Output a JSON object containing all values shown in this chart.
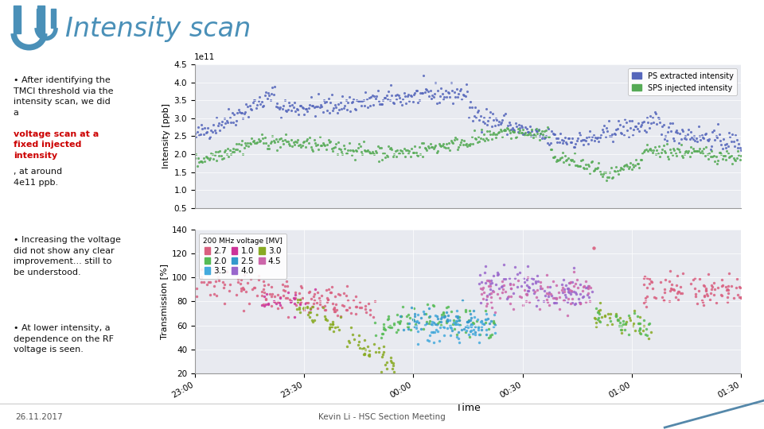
{
  "title": "Intensity scan",
  "slide_bg": "#ffffff",
  "plot_bg": "#e8eaf0",
  "header_color": "#4a90b8",
  "bullet_points_y": [
    0.93,
    0.52,
    0.22
  ],
  "footer_left": "26.11.2017",
  "footer_center": "Kevin Li - HSC Section Meeting",
  "top_plot": {
    "ylabel": "Intensity [ppb]",
    "ylim": [
      0.5,
      4.5
    ],
    "yticks": [
      0.5,
      1.0,
      1.5,
      2.0,
      2.5,
      3.0,
      3.5,
      4.0,
      4.5
    ],
    "multiplier_text": "1e11",
    "ps_color": "#5566bb",
    "sps_color": "#55aa55",
    "ps_label": "PS extracted intensity",
    "sps_label": "SPS injected intensity"
  },
  "bottom_plot": {
    "ylabel": "Transmission [%]",
    "xlabel": "Time",
    "ylim": [
      20,
      140
    ],
    "yticks": [
      20,
      40,
      60,
      80,
      100,
      120,
      140
    ],
    "xtick_labels": [
      "23:00",
      "23:30",
      "00:00",
      "00:30",
      "01:00",
      "01:30"
    ],
    "legend_title": "200 MHz voltage [MV]",
    "volt_colors": {
      "2.7": "#d95f7f",
      "1.0": "#cc3399",
      "2.0": "#55bb55",
      "2.5": "#3399cc",
      "3.0": "#88aa22",
      "3.5": "#44aadd",
      "4.0": "#9966cc",
      "4.5": "#cc66aa"
    }
  }
}
